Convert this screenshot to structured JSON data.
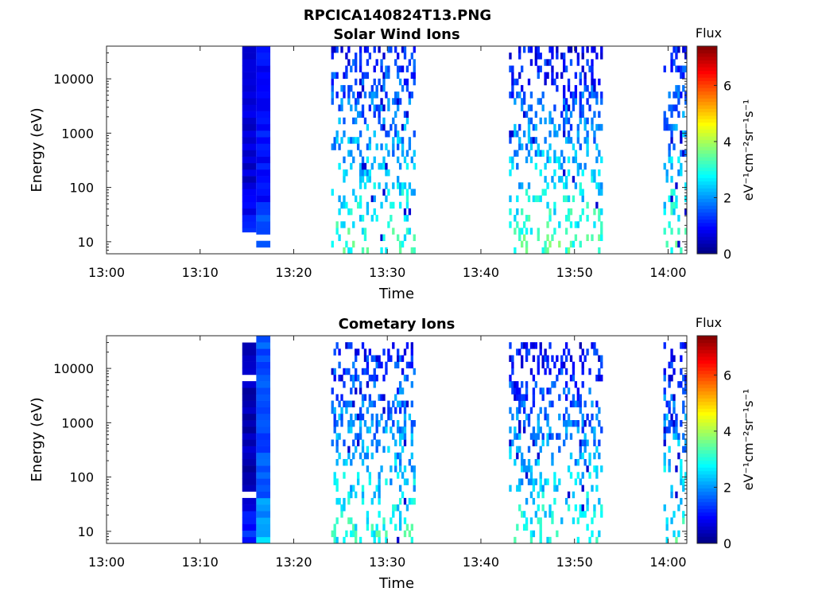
{
  "figure_title": "RPCICA140824T13.PNG",
  "colorbar": {
    "title": "Flux",
    "ticks": [
      "0",
      "2",
      "4",
      "6"
    ],
    "tick_values": [
      0,
      2,
      4,
      6
    ],
    "range": [
      0,
      7.4
    ],
    "colormap": "jet"
  },
  "chart_data": [
    {
      "type": "heatmap",
      "title": "Solar Wind Ions",
      "xlabel": "Time",
      "ylabel": "Energy (eV)",
      "x_ticks": [
        "13:00",
        "13:10",
        "13:20",
        "13:30",
        "13:40",
        "13:50",
        "14:00"
      ],
      "y_ticks": [
        "10",
        "100",
        "1000",
        "10000"
      ],
      "y_scale": "log",
      "xlim": [
        "13:00",
        "14:02"
      ],
      "ylim": [
        6,
        40000
      ],
      "colorbar_label": "eV⁻¹cm⁻²sr⁻¹s⁻¹",
      "data_blocks": [
        {
          "t_start": "13:14.5",
          "t_end": "13:16",
          "e_range": [
            15,
            40000
          ],
          "flux": 0.6
        },
        {
          "t_start": "13:16",
          "t_end": "13:17.5",
          "e_range": [
            6,
            40000
          ],
          "flux": 1.0
        },
        {
          "t_start": "13:24",
          "t_end": "13:33",
          "e_range": [
            6,
            40000
          ],
          "flux_range": [
            1.0,
            3.2
          ]
        },
        {
          "t_start": "13:43",
          "t_end": "13:53",
          "e_range": [
            6,
            40000
          ],
          "flux_range": [
            0.8,
            3.3
          ]
        },
        {
          "t_start": "13:59.5",
          "t_end": "14:02",
          "e_range": [
            6,
            40000
          ],
          "flux_range": [
            1.0,
            3.2
          ]
        }
      ]
    },
    {
      "type": "heatmap",
      "title": "Cometary Ions",
      "xlabel": "Time",
      "ylabel": "Energy (eV)",
      "x_ticks": [
        "13:00",
        "13:10",
        "13:20",
        "13:30",
        "13:40",
        "13:50",
        "14:00"
      ],
      "y_ticks": [
        "10",
        "100",
        "1000",
        "10000"
      ],
      "y_scale": "log",
      "xlim": [
        "13:00",
        "14:02"
      ],
      "ylim": [
        6,
        40000
      ],
      "colorbar_label": "eV⁻¹cm⁻²sr⁻¹s⁻¹",
      "data_blocks": [
        {
          "t_start": "13:14.5",
          "t_end": "13:16",
          "e_range": [
            6,
            30000
          ],
          "flux": 0.4
        },
        {
          "t_start": "13:16",
          "t_end": "13:17.5",
          "e_range": [
            6,
            40000
          ],
          "flux": 1.5
        },
        {
          "t_start": "13:24",
          "t_end": "13:33",
          "e_range": [
            6,
            30000
          ],
          "flux_range": [
            1.0,
            3.0
          ]
        },
        {
          "t_start": "13:43",
          "t_end": "13:53",
          "e_range": [
            6,
            30000
          ],
          "flux_range": [
            0.8,
            3.0
          ]
        },
        {
          "t_start": "13:59.5",
          "t_end": "14:02",
          "e_range": [
            6,
            30000
          ],
          "flux_range": [
            1.0,
            3.0
          ]
        }
      ]
    }
  ]
}
